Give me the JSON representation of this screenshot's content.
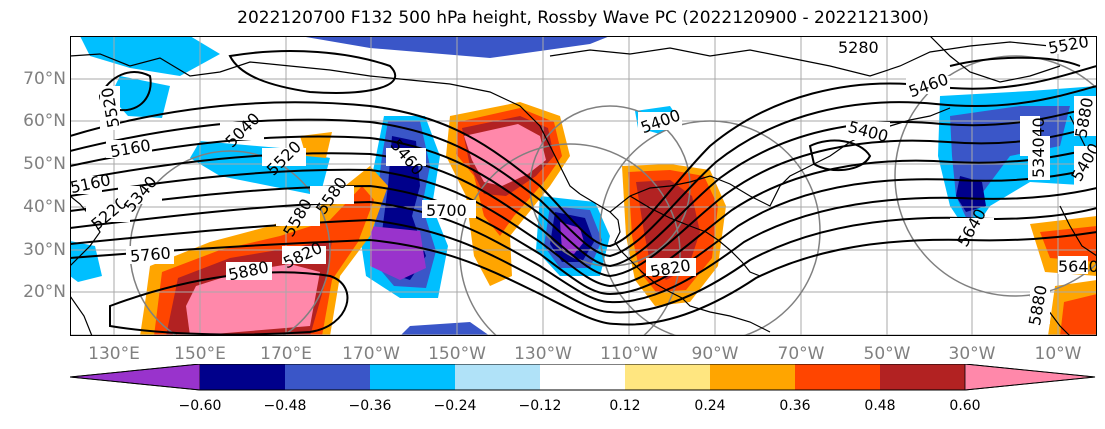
{
  "title": "2022120700 F132 500 hPa height, Rossby Wave PC (2022120900 - 2022121300)",
  "lat_labels": [
    "70°N",
    "60°N",
    "50°N",
    "40°N",
    "30°N",
    "20°N"
  ],
  "lon_labels": [
    "130°E",
    "150°E",
    "170°E",
    "170°W",
    "150°W",
    "130°W",
    "110°W",
    "90°W",
    "70°W",
    "50°W",
    "30°W",
    "10°W"
  ],
  "contour_labels": [
    "5280",
    "5400",
    "5460",
    "5340",
    "5400",
    "5460",
    "5520",
    "5580",
    "5640",
    "5700",
    "5760",
    "5820",
    "5880",
    "5160",
    "5040",
    "5160",
    "5220",
    "5340",
    "5520",
    "5580",
    "5820",
    "5640",
    "5880",
    "5340",
    "5400",
    "5520",
    "5880"
  ],
  "colorbar": {
    "tick_labels": [
      "−0.60",
      "−0.48",
      "−0.36",
      "−0.24",
      "−0.12",
      "0.12",
      "0.24",
      "0.36",
      "0.48",
      "0.60"
    ],
    "colors": [
      "#9933cc",
      "#00008b",
      "#3a56c8",
      "#00bfff",
      "#b0e2f8",
      "#ffffff",
      "#ffe680",
      "#ffa500",
      "#ff4500",
      "#b22222",
      "#ff88aa"
    ]
  }
}
